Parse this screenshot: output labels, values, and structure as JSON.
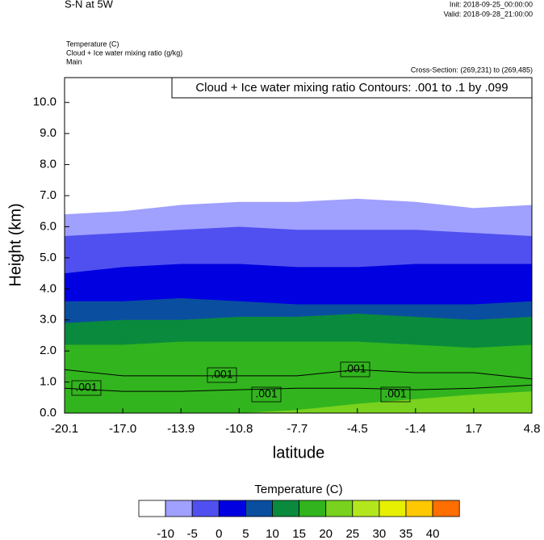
{
  "chart_data": {
    "type": "contour",
    "title": "S-N at 5W",
    "init": "Init: 2018-09-25_00:00:00",
    "valid": "Valid: 2018-09-28_21:00:00",
    "field_lines": [
      "Temperature   (C)",
      "Cloud + Ice water mixing ratio   (g/kg)",
      "Main"
    ],
    "cross_section": "Cross-Section: (269,231) to (269,485)",
    "contour_info": "Cloud + Ice water mixing ratio Contours: .001 to .1 by .099",
    "y_label": "Height (km)",
    "x_label": "latitude",
    "xlim": [
      -20.1,
      4.8
    ],
    "ylim": [
      0,
      10.8
    ],
    "xticks": [
      {
        "value": -20.1,
        "label": "-20.1"
      },
      {
        "value": -17.0,
        "label": "-17.0"
      },
      {
        "value": -13.9,
        "label": "-13.9"
      },
      {
        "value": -10.8,
        "label": "-10.8"
      },
      {
        "value": -7.7,
        "label": "-7.7"
      },
      {
        "value": -4.5,
        "label": "-4.5"
      },
      {
        "value": -1.4,
        "label": "-1.4"
      },
      {
        "value": 1.7,
        "label": "1.7"
      },
      {
        "value": 4.8,
        "label": "4.8"
      }
    ],
    "yticks": [
      {
        "value": 0,
        "label": "0.0"
      },
      {
        "value": 1,
        "label": "1.0"
      },
      {
        "value": 2,
        "label": "2.0"
      },
      {
        "value": 3,
        "label": "3.0"
      },
      {
        "value": 4,
        "label": "4.0"
      },
      {
        "value": 5,
        "label": "5.0"
      },
      {
        "value": 6,
        "label": "6.0"
      },
      {
        "value": 7,
        "label": "7.0"
      },
      {
        "value": 8,
        "label": "8.0"
      },
      {
        "value": 9,
        "label": "9.0"
      },
      {
        "value": 10,
        "label": "10.0"
      }
    ],
    "x": [
      -20.1,
      -17.0,
      -13.9,
      -10.8,
      -7.7,
      -4.5,
      -1.4,
      1.7,
      4.8
    ],
    "isolines": [
      {
        "level": -10,
        "heights": [
          6.4,
          6.5,
          6.7,
          6.8,
          6.8,
          6.9,
          6.8,
          6.6,
          6.7
        ]
      },
      {
        "level": -5,
        "heights": [
          5.7,
          5.8,
          5.9,
          6.0,
          5.9,
          5.9,
          5.9,
          5.8,
          5.7
        ]
      },
      {
        "level": 0,
        "heights": [
          4.5,
          4.7,
          4.8,
          4.8,
          4.7,
          4.7,
          4.8,
          4.8,
          4.8
        ]
      },
      {
        "level": 5,
        "heights": [
          3.6,
          3.6,
          3.7,
          3.6,
          3.5,
          3.5,
          3.5,
          3.5,
          3.6
        ]
      },
      {
        "level": 10,
        "heights": [
          2.9,
          3.0,
          3.0,
          3.1,
          3.1,
          3.2,
          3.1,
          3.0,
          3.1
        ]
      },
      {
        "level": 15,
        "heights": [
          2.2,
          2.2,
          2.3,
          2.3,
          2.3,
          2.3,
          2.2,
          2.1,
          2.2
        ]
      },
      {
        "level": 20,
        "heights": [
          0,
          0,
          0,
          0,
          0.1,
          0.3,
          0.45,
          0.6,
          0.7
        ]
      }
    ],
    "mixing_ratio_contour": {
      "upper": [
        1.4,
        1.2,
        1.2,
        1.2,
        1.2,
        1.4,
        1.3,
        1.3,
        1.1
      ],
      "lower": [
        0.8,
        0.7,
        0.7,
        0.75,
        0.8,
        0.8,
        0.75,
        0.8,
        0.9
      ]
    },
    "contour_labels": [
      ".001",
      ".001",
      ".001",
      ".001",
      ".001"
    ],
    "colorbar_title": "Temperature  (C)",
    "levels": [
      -10,
      -5,
      0,
      5,
      10,
      15,
      20,
      25,
      30,
      35,
      40
    ],
    "colors": [
      "#ffffff",
      "#a0a0ff",
      "#5050f0",
      "#0000e0",
      "#0a4ea0",
      "#0a8a3c",
      "#32b41e",
      "#78d21e",
      "#b4e61e",
      "#e6f000",
      "#ffc800",
      "#ff6e00",
      "#f01e1e"
    ]
  }
}
